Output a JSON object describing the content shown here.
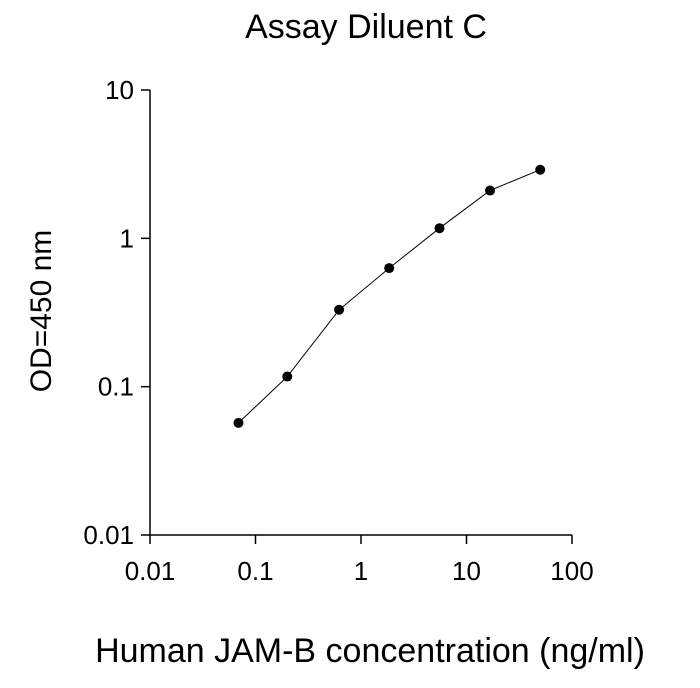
{
  "chart_data": {
    "type": "scatter",
    "title": "Assay Diluent C",
    "xlabel": "Human JAM-B concentration (ng/ml)",
    "ylabel": "OD=450 nm",
    "x_scale": "log",
    "y_scale": "log",
    "xlim": [
      0.01,
      100
    ],
    "ylim": [
      0.01,
      10
    ],
    "x_ticks": [
      "0.01",
      "0.1",
      "1",
      "10",
      "100"
    ],
    "y_ticks": [
      "0.01",
      "0.1",
      "1",
      "10"
    ],
    "grid": false,
    "series": [
      {
        "x": [
          0.069,
          0.2,
          0.62,
          1.85,
          5.55,
          16.7,
          50
        ],
        "y": [
          0.057,
          0.117,
          0.33,
          0.63,
          1.17,
          2.1,
          2.9
        ],
        "marker": "circle",
        "line": true,
        "color": "#000000"
      }
    ]
  }
}
